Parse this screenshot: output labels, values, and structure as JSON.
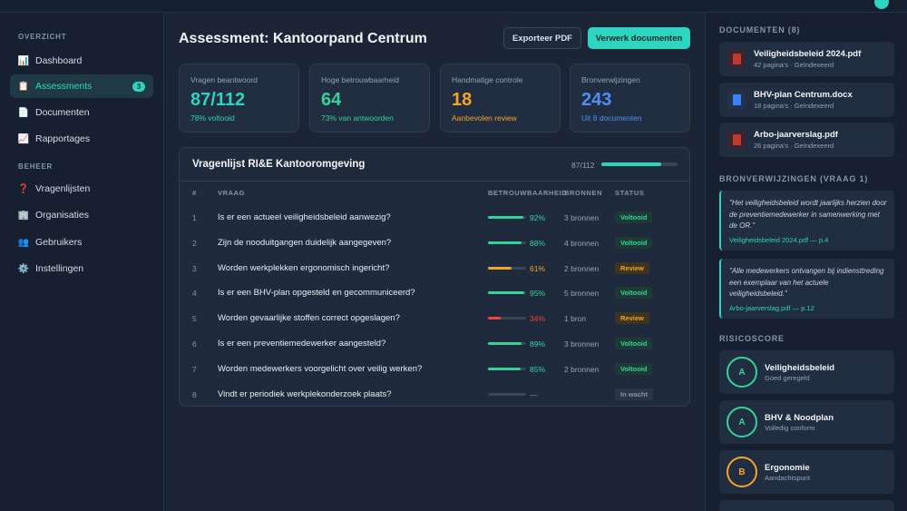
{
  "sidebar": {
    "sections": [
      {
        "label": "OVERZICHT",
        "items": [
          {
            "label": "Dashboard",
            "icon": "bar-chart-icon",
            "glyph": "📊"
          },
          {
            "label": "Assessments",
            "icon": "clipboard-icon",
            "glyph": "📋",
            "badge": "3",
            "active": true
          },
          {
            "label": "Documenten",
            "icon": "document-icon",
            "glyph": "📄"
          },
          {
            "label": "Rapportages",
            "icon": "line-chart-icon",
            "glyph": "📈"
          }
        ]
      },
      {
        "label": "BEHEER",
        "items": [
          {
            "label": "Vragenlijsten",
            "icon": "question-icon",
            "glyph": "❓"
          },
          {
            "label": "Organisaties",
            "icon": "building-icon",
            "glyph": "🏢"
          },
          {
            "label": "Gebruikers",
            "icon": "users-icon",
            "glyph": "👥"
          },
          {
            "label": "Instellingen",
            "icon": "gear-icon",
            "glyph": "⚙️"
          }
        ]
      }
    ]
  },
  "header": {
    "title": "Assessment: Kantoorpand Centrum",
    "export_label": "Exporteer PDF",
    "process_label": "Verwerk documenten"
  },
  "stats": [
    {
      "label": "Vragen beantwoord",
      "value": "87/112",
      "sub": "78% voltooid",
      "color": "#2dd4bf",
      "sub_color": "#2dd4bf"
    },
    {
      "label": "Hoge betrouwbaarheid",
      "value": "64",
      "sub": "73% van antwoorden",
      "color": "#34d399",
      "sub_color": "#34d399"
    },
    {
      "label": "Handmatige controle",
      "value": "18",
      "sub": "Aanbevolen review",
      "color": "#f5a524",
      "sub_color": "#f5a524"
    },
    {
      "label": "Bronverwijzingen",
      "value": "243",
      "sub": "Uit 8 documenten",
      "color": "#4f8ff7",
      "sub_color": "#4f8ff7"
    }
  ],
  "questionnaire": {
    "title": "Vragenlijst RI&E Kantooromgeving",
    "progress_text": "87/112",
    "progress": 0.78,
    "columns": {
      "num": "#",
      "question": "VRAAG",
      "reliability": "BETROUWBAARHEID",
      "sources": "BRONNEN",
      "status": "STATUS"
    },
    "rows": [
      {
        "num": "1",
        "question": "Is er een actueel veiligheidsbeleid aanwezig?",
        "pct": "92%",
        "value": 0.92,
        "level": "high",
        "sources": "3 bronnen",
        "status": "Voltooid",
        "status_type": "done"
      },
      {
        "num": "2",
        "question": "Zijn de nooduitgangen duidelijk aangegeven?",
        "pct": "88%",
        "value": 0.88,
        "level": "high",
        "sources": "4 bronnen",
        "status": "Voltooid",
        "status_type": "done"
      },
      {
        "num": "3",
        "question": "Worden werkplekken ergonomisch ingericht?",
        "pct": "61%",
        "value": 0.61,
        "level": "mid",
        "sources": "2 bronnen",
        "status": "Review",
        "status_type": "review"
      },
      {
        "num": "4",
        "question": "Is er een BHV-plan opgesteld en gecommuniceerd?",
        "pct": "95%",
        "value": 0.95,
        "level": "high",
        "sources": "5 bronnen",
        "status": "Voltooid",
        "status_type": "done"
      },
      {
        "num": "5",
        "question": "Worden gevaarlijke stoffen correct opgeslagen?",
        "pct": "34%",
        "value": 0.34,
        "level": "low",
        "sources": "1 bron",
        "status": "Review",
        "status_type": "review"
      },
      {
        "num": "6",
        "question": "Is er een preventiemedewerker aangesteld?",
        "pct": "89%",
        "value": 0.89,
        "level": "high",
        "sources": "3 bronnen",
        "status": "Voltooid",
        "status_type": "done"
      },
      {
        "num": "7",
        "question": "Worden medewerkers voorgelicht over veilig werken?",
        "pct": "85%",
        "value": 0.85,
        "level": "high",
        "sources": "2 bronnen",
        "status": "Voltooid",
        "status_type": "done"
      },
      {
        "num": "8",
        "question": "Vindt er periodiek werkplekonderzoek plaats?",
        "pct": "—",
        "value": 0,
        "level": "none",
        "sources": "",
        "status": "In wacht",
        "status_type": "wait"
      }
    ]
  },
  "right": {
    "documents_label": "DOCUMENTEN (8)",
    "documents": [
      {
        "name": "Veiligheidsbeleid 2024.pdf",
        "meta": "42 pagina's · Geïndexeerd",
        "type": "pdf"
      },
      {
        "name": "BHV-plan Centrum.docx",
        "meta": "18 pagina's · Geïndexeerd",
        "type": "docx"
      },
      {
        "name": "Arbo-jaarverslag.pdf",
        "meta": "26 pagina's · Geïndexeerd",
        "type": "pdf"
      }
    ],
    "references_label": "BRONVERWIJZINGEN (VRAAG 1)",
    "references": [
      {
        "text": "\"Het veiligheidsbeleid wordt jaarlijks herzien door de preventiemedewerker in samenwerking met de OR.\"",
        "ref": "Veiligheidsbeleid 2024.pdf — p.4"
      },
      {
        "text": "\"Alle medewerkers ontvangen bij indiensttreding een exemplaar van het actuele veiligheidsbeleid.\"",
        "ref": "Arbo-jaarverslag.pdf — p.12"
      }
    ],
    "risk_label": "RISICOSCORE",
    "risks": [
      {
        "grade": "A",
        "title": "Veiligheidsbeleid",
        "sub": "Goed geregeld",
        "color": "#34d399"
      },
      {
        "grade": "A",
        "title": "BHV & Noodplan",
        "sub": "Volledig conform",
        "color": "#34d399"
      },
      {
        "grade": "B",
        "title": "Ergonomie",
        "sub": "Aandachtspunt",
        "color": "#f5a524"
      }
    ]
  },
  "colors": {
    "accent": "#2dd4bf",
    "high": "#34d399",
    "mid": "#f5a524",
    "low": "#ef4444",
    "pdf": "#c0392b",
    "docx": "#3b82f6"
  }
}
